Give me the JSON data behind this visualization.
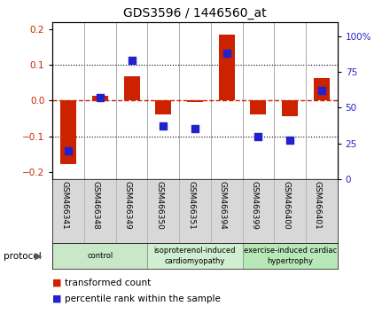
{
  "title": "GDS3596 / 1446560_at",
  "samples": [
    "GSM466341",
    "GSM466348",
    "GSM466349",
    "GSM466350",
    "GSM466351",
    "GSM466394",
    "GSM466399",
    "GSM466400",
    "GSM466401"
  ],
  "transformed_count": [
    -0.178,
    0.012,
    0.068,
    -0.04,
    -0.005,
    0.185,
    -0.038,
    -0.045,
    0.063
  ],
  "percentile_rank": [
    20,
    57,
    83,
    37,
    35,
    88,
    30,
    27,
    62
  ],
  "ylim_left": [
    -0.22,
    0.22
  ],
  "ylim_right": [
    0,
    110
  ],
  "yticks_left": [
    -0.2,
    -0.1,
    0.0,
    0.1,
    0.2
  ],
  "yticks_right": [
    0,
    25,
    50,
    75,
    100
  ],
  "ytick_labels_right": [
    "0",
    "25",
    "50",
    "75",
    "100%"
  ],
  "bar_color": "#cc2200",
  "dot_color": "#2222cc",
  "dashed_line_color": "#cc2200",
  "plot_bg": "#ffffff",
  "groups": [
    {
      "label": "control",
      "start": 0,
      "end": 3,
      "color": "#c8e8c8"
    },
    {
      "label": "isoproterenol-induced\ncardiomyopathy",
      "start": 3,
      "end": 6,
      "color": "#d0eed0"
    },
    {
      "label": "exercise-induced cardiac\nhypertrophy",
      "start": 6,
      "end": 9,
      "color": "#b8e8b8"
    }
  ],
  "protocol_label": "protocol",
  "legend_items": [
    {
      "color": "#cc2200",
      "label": "transformed count"
    },
    {
      "color": "#2222cc",
      "label": "percentile rank within the sample"
    }
  ],
  "bar_width": 0.5,
  "dot_size": 30
}
